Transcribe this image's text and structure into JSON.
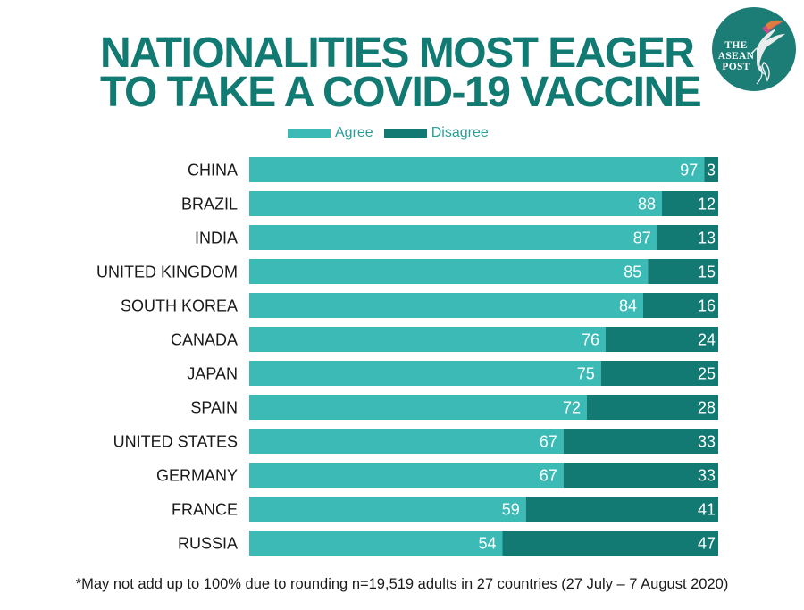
{
  "title": {
    "line1": "NATIONALITIES MOST EAGER",
    "line2": "TO TAKE A COVID-19 VACCINE"
  },
  "logo": {
    "line1": "THE",
    "line2": "ASEAN",
    "line3": "POST",
    "icon": "hummingbird-icon"
  },
  "legend": {
    "agree": "Agree",
    "disagree": "Disagree"
  },
  "colors": {
    "title": "#117a72",
    "agree": "#3cbab5",
    "disagree": "#137a73",
    "logo_bg": "#1c7d76"
  },
  "chart_data": {
    "type": "bar",
    "orientation": "horizontal",
    "stacked": true,
    "categories": [
      "CHINA",
      "BRAZIL",
      "INDIA",
      "UNITED KINGDOM",
      "SOUTH KOREA",
      "CANADA",
      "JAPAN",
      "SPAIN",
      "UNITED STATES",
      "GERMANY",
      "FRANCE",
      "RUSSIA"
    ],
    "series": [
      {
        "name": "Agree",
        "values": [
          97,
          88,
          87,
          85,
          84,
          76,
          75,
          72,
          67,
          67,
          59,
          54
        ]
      },
      {
        "name": "Disagree",
        "values": [
          3,
          12,
          13,
          15,
          16,
          24,
          25,
          28,
          33,
          33,
          41,
          47
        ]
      }
    ],
    "title": "NATIONALITIES MOST EAGER TO TAKE A COVID-19 VACCINE",
    "xlabel": "",
    "ylabel": "",
    "legend_position": "top",
    "grid": false
  },
  "footnote": "*May not add up to 100% due to rounding n=19,519 adults in 27 countries (27 July – 7 August 2020)"
}
